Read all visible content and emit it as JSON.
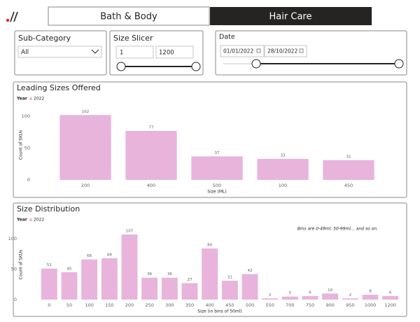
{
  "tabs": [
    "Bath & Body",
    "Hair Care"
  ],
  "filters": {
    "sub_category": {
      "label": "Sub-Category",
      "value": "All"
    },
    "size": {
      "label": "Size Slicer",
      "min": 1,
      "max": 1200
    },
    "date": {
      "label": "Date",
      "start": "01/01/2022",
      "end": "28/10/2022"
    }
  },
  "chart_data": [
    {
      "type": "bar",
      "title": "Leading Sizes Offered",
      "legend_title": "Year",
      "categories": [
        "200",
        "400",
        "500",
        "100",
        "450"
      ],
      "series": [
        {
          "name": "2022",
          "color": "#e8b4dc",
          "values": [
            102,
            77,
            37,
            33,
            31
          ]
        }
      ],
      "x_label": "Size (ML)",
      "y_label": "Count of SKUs",
      "ylim": [
        0,
        110
      ],
      "yticks": [
        0,
        50,
        100
      ],
      "data_labels": true
    },
    {
      "type": "bar",
      "title": "Size Distribution",
      "legend_title": "Year",
      "categories": [
        "0",
        "50",
        "100",
        "150",
        "200",
        "250",
        "300",
        "350",
        "400",
        "450",
        "500",
        "550",
        "700",
        "750",
        "900",
        "950",
        "1000",
        "1200"
      ],
      "series": [
        {
          "name": "2022",
          "color": "#e8b4dc",
          "values": [
            51,
            45,
            66,
            68,
            107,
            36,
            36,
            27,
            84,
            31,
            42,
            2,
            5,
            6,
            10,
            2,
            8,
            6
          ]
        }
      ],
      "x_label": "Size (in bins of 50ml)",
      "y_label": "Count of SKUs",
      "annotation": "Bins are 0-49ml, 50-99ml... and so on.",
      "ylim": [
        0,
        115
      ],
      "yticks": [
        0,
        50,
        100
      ],
      "data_labels": true
    }
  ]
}
